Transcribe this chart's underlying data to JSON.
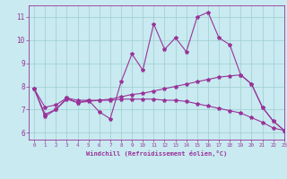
{
  "xlabel": "Windchill (Refroidissement éolien,°C)",
  "xlim": [
    -0.5,
    23
  ],
  "ylim": [
    5.7,
    11.5
  ],
  "yticks": [
    6,
    7,
    8,
    9,
    10,
    11
  ],
  "xticks": [
    0,
    1,
    2,
    3,
    4,
    5,
    6,
    7,
    8,
    9,
    10,
    11,
    12,
    13,
    14,
    15,
    16,
    17,
    18,
    19,
    20,
    21,
    22,
    23
  ],
  "bg_color": "#c8eaf0",
  "line_color": "#993399",
  "grid_color": "#9ecece",
  "series": [
    [
      7.9,
      6.7,
      7.0,
      7.5,
      7.3,
      7.4,
      6.9,
      6.6,
      8.2,
      9.4,
      8.7,
      10.7,
      9.6,
      10.1,
      9.5,
      11.0,
      11.2,
      10.1,
      9.8,
      8.5,
      8.1,
      7.1,
      6.5,
      6.1
    ],
    [
      7.9,
      7.1,
      7.2,
      7.5,
      7.4,
      7.4,
      7.4,
      7.45,
      7.55,
      7.65,
      7.7,
      7.8,
      7.9,
      8.0,
      8.1,
      8.2,
      8.3,
      8.4,
      8.45,
      8.5,
      8.1,
      7.1,
      6.5,
      6.1
    ],
    [
      7.9,
      6.8,
      7.0,
      7.45,
      7.3,
      7.35,
      7.4,
      7.4,
      7.45,
      7.45,
      7.45,
      7.45,
      7.4,
      7.4,
      7.35,
      7.25,
      7.15,
      7.05,
      6.95,
      6.85,
      6.65,
      6.45,
      6.2,
      6.1
    ]
  ]
}
